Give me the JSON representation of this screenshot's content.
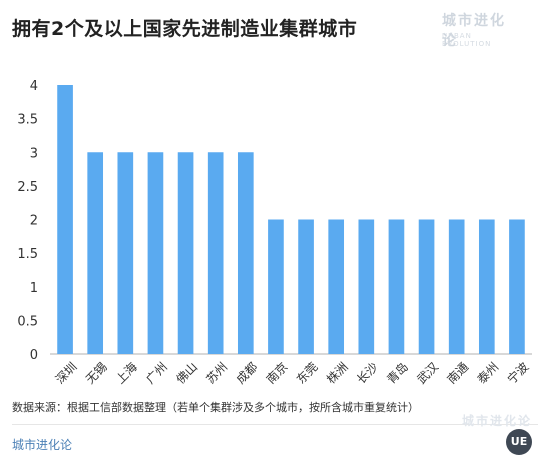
{
  "title": "拥有2个及以上国家先进制造业集群城市",
  "watermark": {
    "brand": "城市进化论",
    "brand_en": "URBAN EVOLUTION"
  },
  "source_note": "数据来源：根据工信部数据整理（若单个集群涉及多个城市，按所含城市重复统计）",
  "footer": {
    "name": "城市进化论",
    "logo_text": "UE"
  },
  "colors": {
    "bar": "#5aaaf0",
    "axis": "#b0b0b0",
    "text": "#333333"
  },
  "chart_data": {
    "type": "bar",
    "title": "拥有2个及以上国家先进制造业集群城市",
    "xlabel": "",
    "ylabel": "",
    "categories": [
      "深圳",
      "无锡",
      "上海",
      "广州",
      "佛山",
      "苏州",
      "成都",
      "南京",
      "东莞",
      "株洲",
      "长沙",
      "青岛",
      "武汉",
      "南通",
      "泰州",
      "宁波"
    ],
    "values": [
      4,
      3,
      3,
      3,
      3,
      3,
      3,
      2,
      2,
      2,
      2,
      2,
      2,
      2,
      2,
      2
    ],
    "ylim": [
      0,
      4
    ],
    "yticks": [
      "0",
      "0.5",
      "1",
      "1.5",
      "2",
      "2.5",
      "3",
      "3.5",
      "4"
    ],
    "grid": false,
    "legend": "none"
  }
}
